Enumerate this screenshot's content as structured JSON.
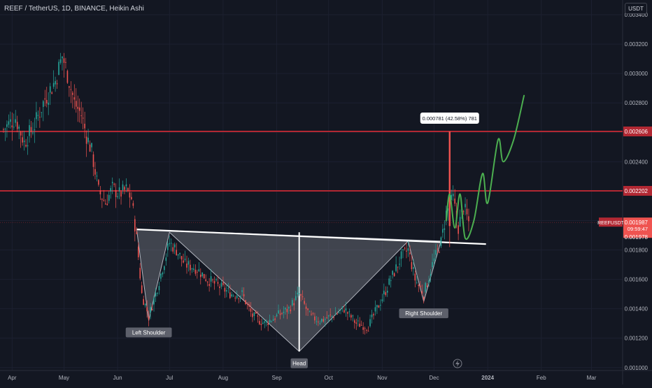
{
  "header": {
    "symbol_title": "REEF / TetherUS, 1D, BINANCE, Heikin Ashi",
    "currency": "USDT"
  },
  "chart_data": {
    "type": "candlestick",
    "symbol": "REEFUSDT",
    "title": "REEF / TetherUS, 1D, BINANCE, Heikin Ashi",
    "xlabel": "",
    "ylabel": "",
    "x_ticks": [
      "Apr",
      "May",
      "Jun",
      "Jul",
      "Aug",
      "Sep",
      "Oct",
      "Nov",
      "Dec",
      "2024",
      "Feb",
      "Mar"
    ],
    "y_ticks": [
      0.001,
      0.0012,
      0.0014,
      0.0016,
      0.0018,
      0.002,
      0.0022,
      0.0024,
      0.0026,
      0.0028,
      0.003,
      0.0032,
      0.0034
    ],
    "ylim": [
      0.00098,
      0.0035
    ],
    "y_tick_labels": [
      "0.001000",
      "0.001200",
      "0.001400",
      "0.001600",
      "0.001800",
      "0.002000",
      "0.002200",
      "0.002400",
      "0.002600",
      "0.002800",
      "0.003000",
      "0.003200",
      "0.003400"
    ],
    "colors": {
      "up": "#26a69a",
      "down": "#ef5350",
      "level": "#b22833",
      "projection": "#4caf50",
      "neckline": "#ffffff",
      "pattern_fill": "#9598a1"
    },
    "price_path": [
      [
        "2023-03-27",
        0.00262
      ],
      [
        "2023-04-03",
        0.0027
      ],
      [
        "2023-04-08",
        0.00253
      ],
      [
        "2023-04-14",
        0.00265
      ],
      [
        "2023-04-20",
        0.00283
      ],
      [
        "2023-04-26",
        0.00295
      ],
      [
        "2023-04-30",
        0.00312
      ],
      [
        "2023-05-03",
        0.003
      ],
      [
        "2023-05-07",
        0.0028
      ],
      [
        "2023-05-11",
        0.00272
      ],
      [
        "2023-05-14",
        0.00258
      ],
      [
        "2023-05-17",
        0.00247
      ],
      [
        "2023-05-21",
        0.0022
      ],
      [
        "2023-05-25",
        0.00212
      ],
      [
        "2023-05-29",
        0.00222
      ],
      [
        "2023-06-02",
        0.00218
      ],
      [
        "2023-06-06",
        0.00221
      ],
      [
        "2023-06-09",
        0.00215
      ],
      [
        "2023-06-12",
        0.00188
      ],
      [
        "2023-06-15",
        0.0015
      ],
      [
        "2023-06-19",
        0.00135
      ],
      [
        "2023-06-23",
        0.0015
      ],
      [
        "2023-06-27",
        0.00168
      ],
      [
        "2023-07-01",
        0.00185
      ],
      [
        "2023-07-05",
        0.0018
      ],
      [
        "2023-07-10",
        0.0017
      ],
      [
        "2023-07-16",
        0.00168
      ],
      [
        "2023-07-23",
        0.0016
      ],
      [
        "2023-07-30",
        0.00155
      ],
      [
        "2023-08-06",
        0.0015
      ],
      [
        "2023-08-12",
        0.0015
      ],
      [
        "2023-08-18",
        0.00135
      ],
      [
        "2023-08-25",
        0.0013
      ],
      [
        "2023-09-01",
        0.00135
      ],
      [
        "2023-09-08",
        0.0014
      ],
      [
        "2023-09-14",
        0.0015
      ],
      [
        "2023-09-20",
        0.00135
      ],
      [
        "2023-09-26",
        0.00132
      ],
      [
        "2023-10-03",
        0.00135
      ],
      [
        "2023-10-10",
        0.0014
      ],
      [
        "2023-10-17",
        0.0013
      ],
      [
        "2023-10-24",
        0.00128
      ],
      [
        "2023-10-31",
        0.00145
      ],
      [
        "2023-11-06",
        0.0016
      ],
      [
        "2023-11-12",
        0.00175
      ],
      [
        "2023-11-16",
        0.0018
      ],
      [
        "2023-11-20",
        0.0016
      ],
      [
        "2023-11-25",
        0.0015
      ],
      [
        "2023-11-30",
        0.0017
      ],
      [
        "2023-12-05",
        0.00185
      ],
      [
        "2023-12-08",
        0.00205
      ],
      [
        "2023-12-12",
        0.00215
      ],
      [
        "2023-12-15",
        0.00195
      ],
      [
        "2023-12-18",
        0.0021
      ],
      [
        "2023-12-21",
        0.00199
      ]
    ],
    "spike": {
      "date": "2023-12-10",
      "high": 0.002606,
      "low": 0.00182
    },
    "horizontal_levels": [
      {
        "value": 0.002606,
        "label": "0.002606"
      },
      {
        "value": 0.002202,
        "label": "0.002202"
      },
      {
        "value": 0.001987,
        "label": ""
      }
    ],
    "neckline": {
      "start": [
        "2023-06-12",
        0.00194
      ],
      "end": [
        "2023-12-31",
        0.00184
      ]
    },
    "pattern": {
      "points": [
        [
          "2023-06-12",
          0.00194
        ],
        [
          "2023-06-19",
          0.00132
        ],
        [
          "2023-07-01",
          0.00192
        ],
        [
          "2023-09-14",
          0.00111
        ],
        [
          "2023-11-16",
          0.00186
        ],
        [
          "2023-11-25",
          0.00145
        ],
        [
          "2023-12-05",
          0.00186
        ]
      ],
      "head_line": {
        "date": "2023-09-14",
        "top": 0.00192,
        "bottom": 0.00111
      },
      "labels": [
        {
          "text": "Left Shoulder",
          "date": "2023-06-19",
          "value": 0.00132
        },
        {
          "text": "Head",
          "date": "2023-09-14",
          "value": 0.00111
        },
        {
          "text": "Right Shoulder",
          "date": "2023-11-25",
          "value": 0.00145
        }
      ]
    },
    "projection": [
      [
        "2023-12-08",
        0.002
      ],
      [
        "2023-12-10",
        0.00218
      ],
      [
        "2023-12-13",
        0.00195
      ],
      [
        "2023-12-16",
        0.00218
      ],
      [
        "2023-12-19",
        0.00188
      ],
      [
        "2023-12-24",
        0.002
      ],
      [
        "2023-12-29",
        0.00232
      ],
      [
        "2024-01-01",
        0.00212
      ],
      [
        "2024-01-07",
        0.00255
      ],
      [
        "2024-01-10",
        0.0024
      ],
      [
        "2024-01-16",
        0.00255
      ],
      [
        "2024-01-22",
        0.00285
      ]
    ],
    "measure": {
      "label": "0.000781 (42.58%) 781",
      "date": "2023-12-10",
      "value": 0.002606
    },
    "last_price": {
      "symbol": "REEFUSDT",
      "price_label": "0.001987",
      "countdown": "09:59:47",
      "low_label": "0.001978"
    }
  }
}
